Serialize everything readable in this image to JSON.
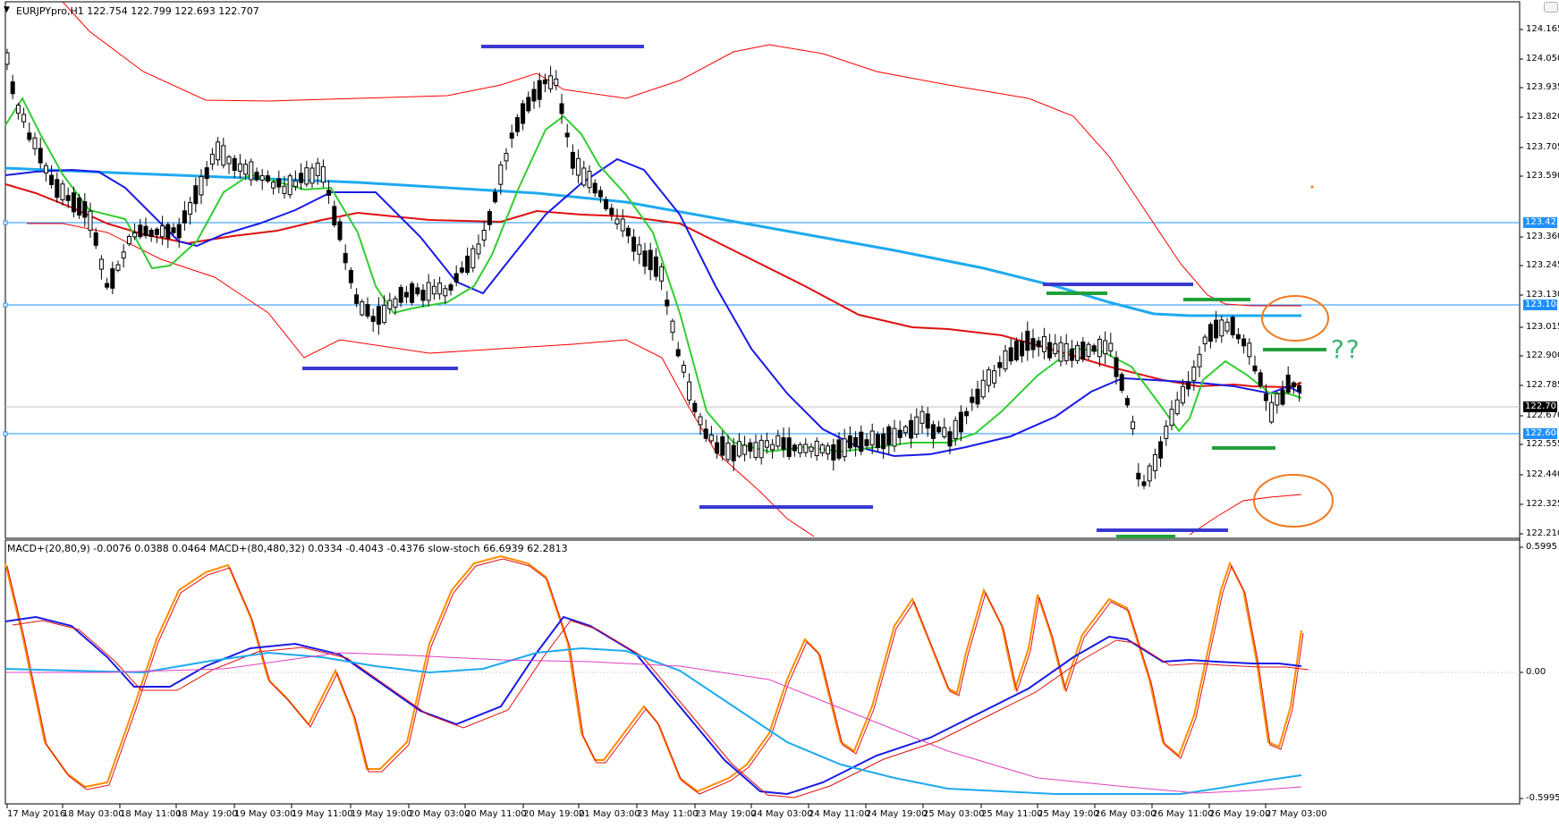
{
  "main_pane": {
    "title": "EURJPYpro,H1  122.754 122.799 122.693 122.707",
    "price_axis_labels": [
      "124.165",
      "124.050",
      "123.935",
      "123.820",
      "123.705",
      "123.590",
      "123.360",
      "123.245",
      "123.130",
      "123.015",
      "122.900",
      "122.785",
      "122.670",
      "122.555",
      "122.440",
      "122.325",
      "122.210"
    ],
    "price_tags": {
      "current": "122.707",
      "hline_upper": "123.422",
      "hline_mid": "123.104",
      "hline_lower": "122.604"
    },
    "annotation_text": "??"
  },
  "sub_pane": {
    "title": "MACD+(20,80,9) -0.0076 0.0388 0.0464  MACD+(80,480,32) 0.0334 -0.4043 -0.4376  slow-stoch 66.6939 62.2813",
    "axis_labels": [
      "0.5995",
      "0.00",
      "-0.5995"
    ]
  },
  "time_axis": [
    "17 May 2016",
    "18 May 03:00",
    "18 May 11:00",
    "18 May 19:00",
    "19 May 03:00",
    "19 May 11:00",
    "19 May 19:00",
    "20 May 03:00",
    "20 May 11:00",
    "20 May 19:00",
    "21 May 03:00",
    "23 May 11:00",
    "23 May 19:00",
    "24 May 03:00",
    "24 May 11:00",
    "24 May 19:00",
    "25 May 03:00",
    "25 May 11:00",
    "25 May 19:00",
    "26 May 03:00",
    "26 May 11:00",
    "26 May 19:00",
    "27 May 03:00"
  ],
  "colors": {
    "candle": "#000000",
    "bollinger": "#ff0000",
    "ma_red": "#e01010",
    "ma_green": "#32cd32",
    "ma_blue": "#1a1ae6",
    "ma_cyan": "#1eaaf0",
    "hline": "#1e90ff",
    "support_resistance_blue": "#3a3ad0",
    "support_resistance_green": "#22a03a",
    "ellipse": "#f07a20",
    "stoch_orange": "#ff8c00",
    "macd_magenta": "#e040c0"
  }
}
